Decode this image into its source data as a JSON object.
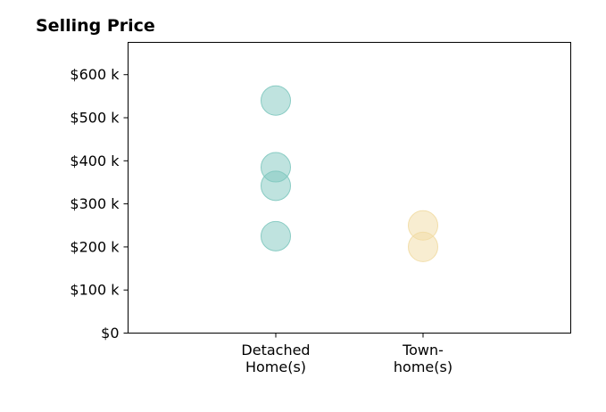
{
  "chart_data": {
    "type": "scatter",
    "title": "Selling Price",
    "xlabel": "",
    "ylabel": "",
    "categories": [
      [
        "Detached",
        "Home(s)"
      ],
      [
        "Town-",
        "home(s)"
      ]
    ],
    "y_ticks": [
      {
        "value": 0,
        "label": "$0"
      },
      {
        "value": 100,
        "label": "$100 k"
      },
      {
        "value": 200,
        "label": "$200 k"
      },
      {
        "value": 300,
        "label": "$300 k"
      },
      {
        "value": 400,
        "label": "$400 k"
      },
      {
        "value": 500,
        "label": "$500 k"
      },
      {
        "value": 600,
        "label": "$600 k"
      }
    ],
    "ylim": [
      0,
      675
    ],
    "grid": false,
    "series": [
      {
        "category_index": 0,
        "values": [
          540,
          385,
          342,
          225
        ],
        "color": "#7fc8bf"
      },
      {
        "category_index": 1,
        "values": [
          250,
          200
        ],
        "color": "#f1dca4"
      }
    ]
  }
}
